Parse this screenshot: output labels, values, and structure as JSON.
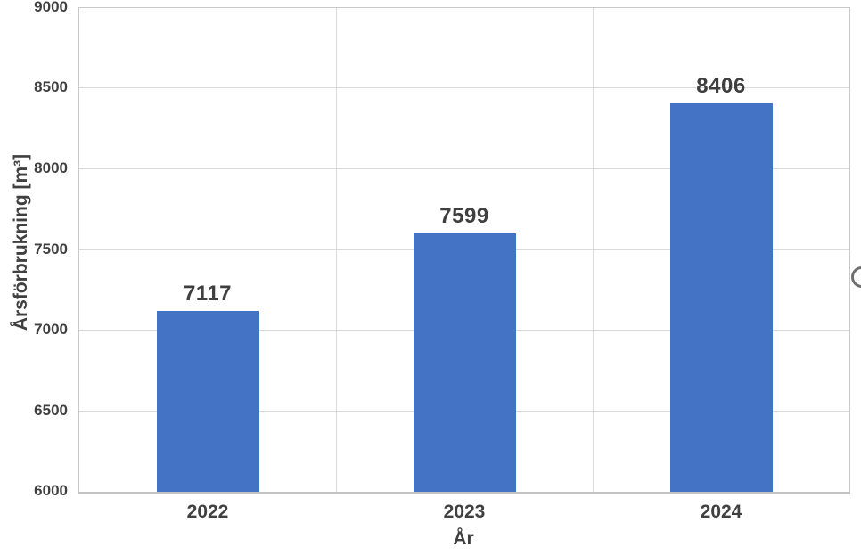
{
  "chart_data": {
    "type": "bar",
    "categories": [
      "2022",
      "2023",
      "2024"
    ],
    "values": [
      7117,
      7599,
      8406
    ],
    "data_labels": [
      "7117",
      "7599",
      "8406"
    ],
    "title": "",
    "xlabel": "År",
    "ylabel": "Årsförbrukning [m³]",
    "ylim": [
      6000,
      9000
    ],
    "ytick_step": 500,
    "yticks": [
      "6000",
      "6500",
      "7000",
      "7500",
      "8000",
      "8500",
      "9000"
    ],
    "grid": true,
    "legend": "none",
    "colors": {
      "bar": "#4472C4",
      "text": "#404040",
      "gridline": "#D9D9D9",
      "plot_border": "#C9C9C9"
    }
  },
  "widgets": {
    "right_edge_button": {
      "icon": "circle",
      "color": "#6F6F6F"
    }
  }
}
